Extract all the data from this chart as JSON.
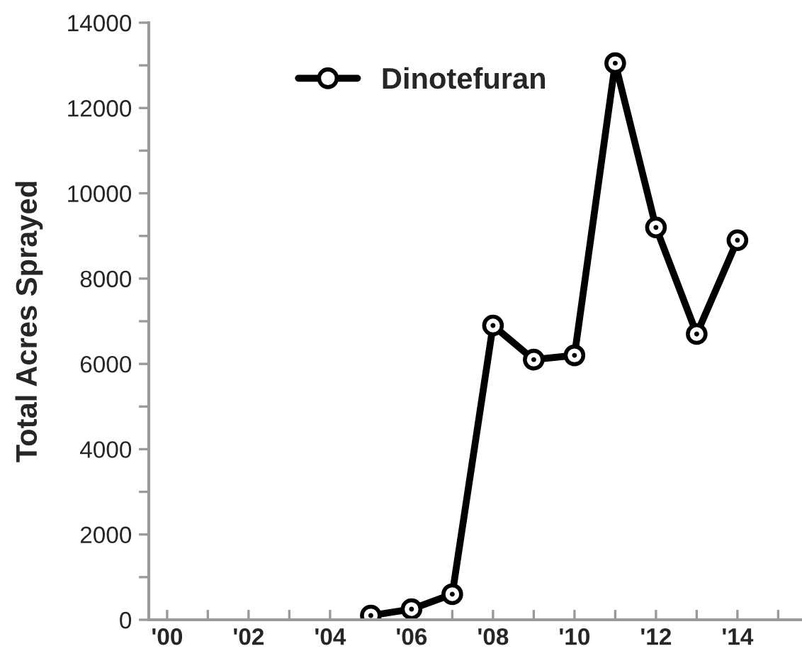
{
  "chart_data": {
    "type": "line",
    "ylabel": "Total Acres Sprayed",
    "series": [
      {
        "name": "Dinotefuran",
        "color": "#000000",
        "x": [
          5,
          6,
          7,
          8,
          9,
          10,
          11,
          12,
          13,
          14
        ],
        "values": [
          100,
          250,
          600,
          6900,
          6100,
          6200,
          13050,
          9200,
          6700,
          8900
        ]
      }
    ],
    "xlim": [
      -0.45,
      15.55
    ],
    "xticks": [
      {
        "value": 0,
        "label": "'00"
      },
      {
        "value": 1,
        "label": null
      },
      {
        "value": 2,
        "label": "'02"
      },
      {
        "value": 3,
        "label": null
      },
      {
        "value": 4,
        "label": "'04"
      },
      {
        "value": 5,
        "label": null
      },
      {
        "value": 6,
        "label": "'06"
      },
      {
        "value": 7,
        "label": null
      },
      {
        "value": 8,
        "label": "'08"
      },
      {
        "value": 9,
        "label": null
      },
      {
        "value": 10,
        "label": "'10"
      },
      {
        "value": 11,
        "label": null
      },
      {
        "value": 12,
        "label": "'12"
      },
      {
        "value": 13,
        "label": null
      },
      {
        "value": 14,
        "label": "'14"
      },
      {
        "value": 15,
        "label": null
      }
    ],
    "ylim": [
      0,
      14000
    ],
    "yticks": [
      0,
      {
        "value": 1000,
        "label": null
      },
      2000,
      {
        "value": 3000,
        "label": null
      },
      4000,
      {
        "value": 5000,
        "label": null
      },
      6000,
      {
        "value": 7000,
        "label": null
      },
      8000,
      {
        "value": 9000,
        "label": null
      },
      10000,
      {
        "value": 11000,
        "label": null
      },
      12000,
      {
        "value": 13000,
        "label": null
      },
      14000
    ],
    "grid": false,
    "legend": "top",
    "marker": "circle",
    "line_style": "solid"
  }
}
